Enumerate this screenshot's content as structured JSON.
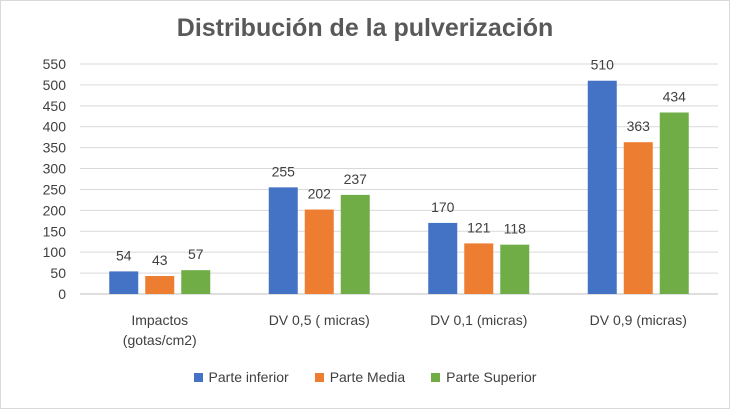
{
  "chart_data": {
    "type": "bar",
    "title": "Distribución de la pulverización",
    "categories": [
      [
        "Impactos",
        "(gotas/cm2)"
      ],
      [
        "DV 0,5 ( micras)"
      ],
      [
        "DV 0,1 (micras)"
      ],
      [
        "DV 0,9 (micras)"
      ]
    ],
    "series": [
      {
        "name": "Parte inferior",
        "color": "#4472C4",
        "values": [
          54,
          255,
          170,
          510
        ]
      },
      {
        "name": "Parte Media",
        "color": "#ED7D31",
        "values": [
          43,
          202,
          121,
          363
        ]
      },
      {
        "name": "Parte Superior",
        "color": "#70AD47",
        "values": [
          57,
          237,
          118,
          434
        ]
      }
    ],
    "ylim": [
      0,
      550
    ],
    "yticks": [
      0,
      50,
      100,
      150,
      200,
      250,
      300,
      350,
      400,
      450,
      500,
      550
    ],
    "grid": true,
    "legend_position": "bottom"
  }
}
